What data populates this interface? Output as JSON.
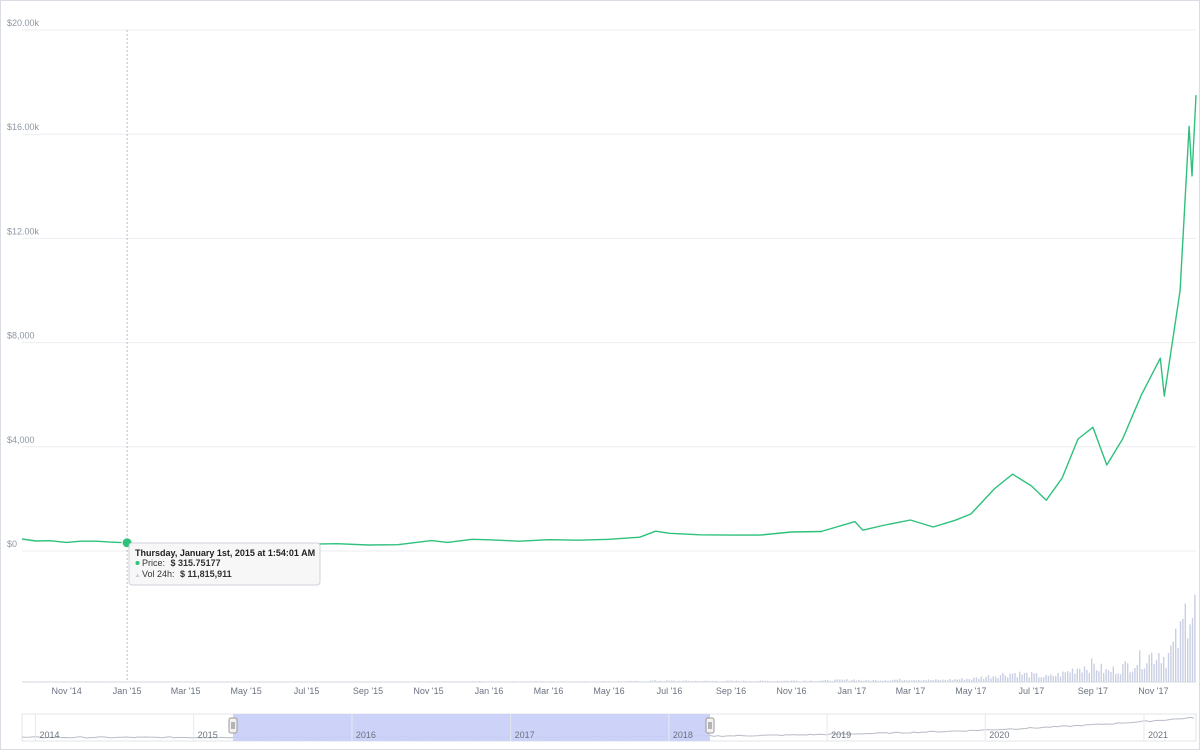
{
  "colors": {
    "line": "#2ec17c",
    "volume": "#c9cfe2",
    "navigator_mask": "#c8cef7",
    "grid": "#eceef3",
    "crosshair": "#b7bcc6",
    "vol_bullet": "#c9cfe2"
  },
  "chart_data": {
    "type": "line",
    "series": [
      {
        "points": [
          [
            "2014-09-17",
            460
          ],
          [
            "2014-10-01",
            385
          ],
          [
            "2014-10-15",
            395
          ],
          [
            "2014-11-01",
            330
          ],
          [
            "2014-11-15",
            375
          ],
          [
            "2014-12-01",
            375
          ],
          [
            "2014-12-15",
            340
          ],
          [
            "2015-01-01",
            315.75
          ],
          [
            "2015-01-14",
            180
          ],
          [
            "2015-02-01",
            225
          ],
          [
            "2015-03-01",
            260
          ],
          [
            "2015-04-01",
            245
          ],
          [
            "2015-05-01",
            235
          ],
          [
            "2015-06-01",
            225
          ],
          [
            "2015-07-01",
            260
          ],
          [
            "2015-08-01",
            280
          ],
          [
            "2015-09-01",
            230
          ],
          [
            "2015-10-01",
            240
          ],
          [
            "2015-11-04",
            400
          ],
          [
            "2015-11-20",
            330
          ],
          [
            "2015-12-15",
            450
          ],
          [
            "2016-01-01",
            430
          ],
          [
            "2016-02-01",
            375
          ],
          [
            "2016-03-01",
            435
          ],
          [
            "2016-04-01",
            415
          ],
          [
            "2016-05-01",
            450
          ],
          [
            "2016-06-01",
            530
          ],
          [
            "2016-06-17",
            760
          ],
          [
            "2016-07-01",
            680
          ],
          [
            "2016-08-01",
            620
          ],
          [
            "2016-09-01",
            610
          ],
          [
            "2016-10-01",
            615
          ],
          [
            "2016-11-01",
            730
          ],
          [
            "2016-12-01",
            750
          ],
          [
            "2017-01-04",
            1130
          ],
          [
            "2017-01-12",
            800
          ],
          [
            "2017-02-01",
            980
          ],
          [
            "2017-03-01",
            1190
          ],
          [
            "2017-03-24",
            920
          ],
          [
            "2017-04-15",
            1180
          ],
          [
            "2017-05-01",
            1420
          ],
          [
            "2017-05-25",
            2400
          ],
          [
            "2017-06-12",
            2950
          ],
          [
            "2017-07-01",
            2500
          ],
          [
            "2017-07-16",
            1950
          ],
          [
            "2017-08-01",
            2800
          ],
          [
            "2017-08-17",
            4300
          ],
          [
            "2017-09-01",
            4750
          ],
          [
            "2017-09-15",
            3300
          ],
          [
            "2017-10-01",
            4300
          ],
          [
            "2017-10-20",
            6000
          ],
          [
            "2017-11-08",
            7400
          ],
          [
            "2017-11-12",
            5950
          ],
          [
            "2017-11-28",
            10000
          ],
          [
            "2017-12-07",
            16300
          ],
          [
            "2017-12-10",
            14400
          ],
          [
            "2017-12-14",
            17500
          ]
        ]
      }
    ],
    "ylim": [
      0,
      20000
    ],
    "y_ticks": [
      "$0",
      "$4,000",
      "$8,000",
      "$12.00k",
      "$16.00k",
      "$20.00k"
    ],
    "x_ticks": [
      "Nov '14",
      "Jan '15",
      "Mar '15",
      "May '15",
      "Jul '15",
      "Sep '15",
      "Nov '15",
      "Jan '16",
      "Mar '16",
      "May '16",
      "Jul '16",
      "Sep '16",
      "Nov '16",
      "Jan '17",
      "Mar '17",
      "May '17",
      "Jul '17",
      "Sep '17",
      "Nov '17"
    ],
    "navigator_labels": [
      "2014",
      "2015",
      "2016",
      "2017",
      "2018",
      "2019",
      "2020",
      "2021"
    ],
    "grid": true
  },
  "tooltip": {
    "date": "Thursday, January 1st, 2015 at 1:54:01 AM",
    "price_label": "Price:",
    "price_value": "$ 315.75177",
    "vol_label": "Vol 24h:",
    "vol_value": "$ 11,815,911"
  }
}
